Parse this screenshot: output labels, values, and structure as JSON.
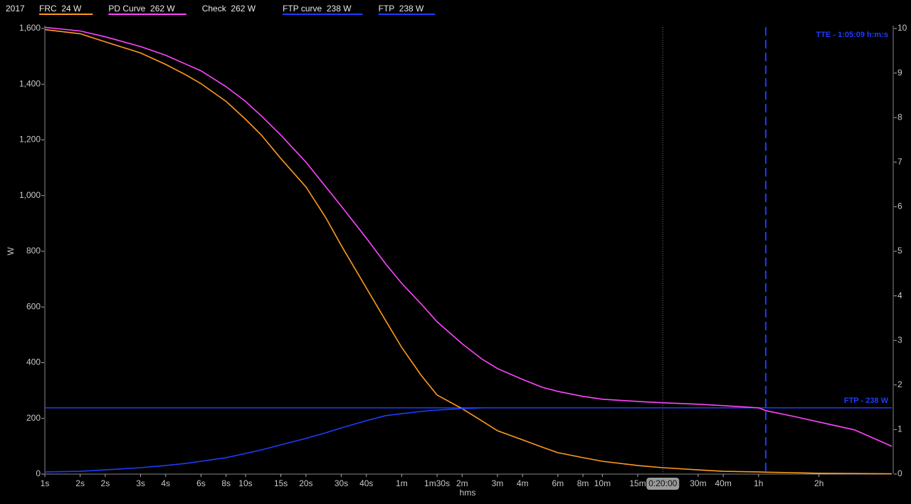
{
  "chart_data": {
    "type": "line",
    "legend_title": "2017",
    "xlabel": "hms",
    "ylabel": "W",
    "xscale": "log",
    "xlim": [
      1,
      16600
    ],
    "x": [
      1,
      1.5,
      2,
      3,
      4,
      5,
      6,
      8,
      10,
      12,
      15,
      20,
      25,
      30,
      40,
      50,
      60,
      75,
      90,
      120,
      150,
      180,
      240,
      300,
      360,
      480,
      600,
      900,
      1200,
      1800,
      2400,
      3600,
      3909,
      5400,
      7200,
      10800,
      16600
    ],
    "xticks": [
      {
        "value": 1,
        "label": "1s"
      },
      {
        "value": 1.5,
        "label": "2s"
      },
      {
        "value": 2,
        "label": "2s"
      },
      {
        "value": 3,
        "label": "3s"
      },
      {
        "value": 4,
        "label": "4s"
      },
      {
        "value": 6,
        "label": "6s"
      },
      {
        "value": 8,
        "label": "8s"
      },
      {
        "value": 10,
        "label": "10s"
      },
      {
        "value": 15,
        "label": "15s"
      },
      {
        "value": 20,
        "label": "20s"
      },
      {
        "value": 30,
        "label": "30s"
      },
      {
        "value": 40,
        "label": "40s"
      },
      {
        "value": 60,
        "label": "1m"
      },
      {
        "value": 90,
        "label": "1m30s"
      },
      {
        "value": 120,
        "label": "2m"
      },
      {
        "value": 180,
        "label": "3m"
      },
      {
        "value": 240,
        "label": "4m"
      },
      {
        "value": 360,
        "label": "6m"
      },
      {
        "value": 480,
        "label": "8m"
      },
      {
        "value": 600,
        "label": "10m"
      },
      {
        "value": 900,
        "label": "15m"
      },
      {
        "value": 1800,
        "label": "30m"
      },
      {
        "value": 2400,
        "label": "40m"
      },
      {
        "value": 3600,
        "label": "1h"
      },
      {
        "value": 7200,
        "label": "2h"
      }
    ],
    "ylim": [
      0,
      1600
    ],
    "yticks": [
      0,
      200,
      400,
      600,
      800,
      {
        "value": 1000,
        "label": "1,000"
      },
      {
        "value": 1200,
        "label": "1,200"
      },
      {
        "value": 1400,
        "label": "1,400"
      },
      {
        "value": 1600,
        "label": "1,600"
      }
    ],
    "y2lim": [
      0,
      10
    ],
    "y2ticks": [
      0,
      1,
      2,
      3,
      4,
      5,
      6,
      7,
      8,
      9,
      10
    ],
    "series": [
      {
        "name": "FRC  24 W",
        "color": "#ff9a1f",
        "values": [
          1596,
          1581,
          1552,
          1512,
          1471,
          1435,
          1402,
          1338,
          1274,
          1217,
          1133,
          1031,
          923,
          821,
          668,
          550,
          455,
          355,
          284,
          235,
          192,
          156,
          123,
          97,
          77,
          59,
          46,
          31,
          23,
          15,
          10,
          8,
          7,
          5,
          3,
          2,
          1
        ]
      },
      {
        "name": "PD Curve  262 W",
        "color": "#ff44ff",
        "values": [
          1604,
          1591,
          1570,
          1535,
          1504,
          1473,
          1448,
          1391,
          1338,
          1286,
          1217,
          1120,
          1033,
          962,
          847,
          754,
          685,
          611,
          547,
          468,
          414,
          379,
          340,
          312,
          297,
          279,
          269,
          261,
          256,
          251,
          246,
          238,
          228,
          207,
          187,
          159,
          100
        ]
      },
      {
        "name": "Check  262 W",
        "values": [
          null,
          null,
          null,
          null,
          null,
          null,
          null,
          null,
          null,
          null,
          null,
          null,
          null,
          null,
          null,
          null,
          null,
          null,
          null,
          null,
          null,
          null,
          null,
          null,
          null,
          null,
          null,
          null,
          null,
          null,
          null,
          null,
          null,
          null,
          null,
          null,
          null
        ]
      },
      {
        "name": "FTP curve  238 W",
        "color": "#1e3cff",
        "values": [
          8,
          10,
          15,
          23,
          31,
          38,
          46,
          59,
          74,
          87,
          105,
          128,
          148,
          166,
          192,
          210,
          217,
          225,
          230,
          235,
          238,
          null,
          null,
          null,
          null,
          null,
          null,
          null,
          null,
          null,
          null,
          null,
          null,
          null,
          null,
          null,
          null
        ]
      }
    ],
    "hlines": [
      {
        "name": "FTP  238 W",
        "value": 238,
        "label": "FTP - 238 W",
        "color": "#1e3cff"
      }
    ],
    "vlines": [
      {
        "value": 3909,
        "label": "TTE - 1:05:09 h:m:s",
        "color": "#1e3cff",
        "style": "dashed"
      },
      {
        "value": 1200,
        "label": "0:20:00",
        "color": "#777777",
        "style": "dotted"
      }
    ]
  }
}
